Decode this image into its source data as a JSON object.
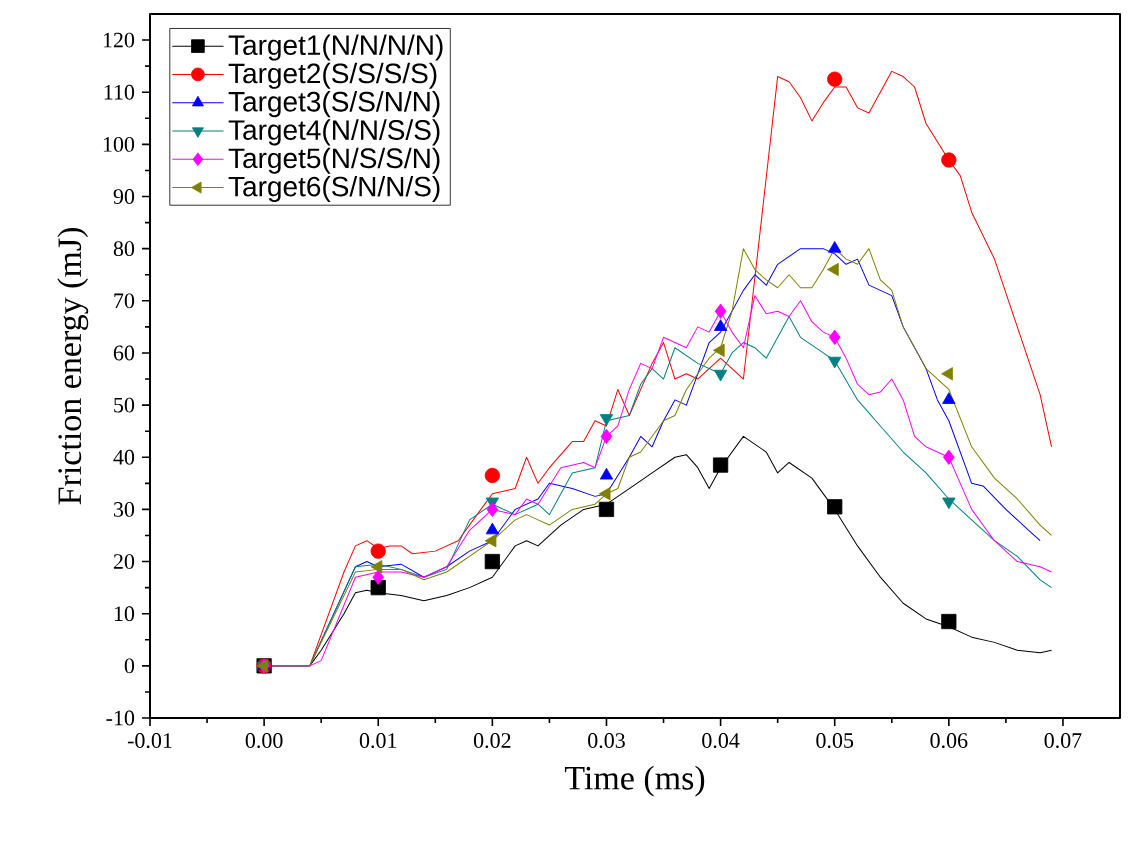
{
  "chart_data": {
    "type": "line",
    "xlabel": "Time (ms)",
    "ylabel": "Friction energy (mJ)",
    "xlim": [
      -0.01,
      0.075
    ],
    "ylim": [
      -10,
      125
    ],
    "xticks": [
      -0.01,
      {
        "value": 0,
        "label": "0.00"
      },
      0.01,
      0.02,
      0.03,
      0.04,
      0.05,
      0.06,
      0.07
    ],
    "yticks": [
      -10,
      0,
      10,
      20,
      30,
      40,
      50,
      60,
      70,
      80,
      90,
      100,
      110,
      120
    ],
    "legend": "top left",
    "grid": false,
    "series": [
      {
        "marker": "none",
        "color": "#000000",
        "x": [
          0,
          0.004,
          0.005,
          0.007,
          0.008,
          0.009,
          0.01,
          0.012,
          0.014,
          0.016,
          0.018,
          0.02,
          0.022,
          0.023,
          0.024,
          0.026,
          0.028,
          0.03,
          0.032,
          0.034,
          0.036,
          0.037,
          0.038,
          0.039,
          0.04,
          0.042,
          0.044,
          0.045,
          0.046,
          0.048,
          0.05,
          0.052,
          0.054,
          0.056,
          0.058,
          0.06,
          0.062,
          0.064,
          0.066,
          0.068,
          0.069
        ],
        "values": [
          0,
          0,
          3,
          10,
          14,
          14.5,
          14,
          13.5,
          12.5,
          13.5,
          15,
          17,
          23,
          24,
          23,
          27,
          30,
          31,
          34,
          37,
          40,
          40.5,
          38,
          34,
          38,
          44,
          41,
          37,
          39,
          36,
          30,
          23,
          17,
          12,
          9,
          7.5,
          5.5,
          4.5,
          3,
          2.5,
          3
        ]
      },
      {
        "marker": "none",
        "color": "#ff0000",
        "x": [
          0,
          0.004,
          0.007,
          0.008,
          0.009,
          0.01,
          0.011,
          0.012,
          0.013,
          0.015,
          0.017,
          0.019,
          0.02,
          0.022,
          0.023,
          0.024,
          0.025,
          0.027,
          0.028,
          0.029,
          0.03,
          0.031,
          0.032,
          0.034,
          0.035,
          0.036,
          0.037,
          0.038,
          0.04,
          0.041,
          0.042,
          0.045,
          0.046,
          0.047,
          0.048,
          0.049,
          0.05,
          0.051,
          0.052,
          0.053,
          0.055,
          0.056,
          0.057,
          0.058,
          0.06,
          0.061,
          0.062,
          0.064,
          0.066,
          0.068,
          0.069
        ],
        "values": [
          0,
          0,
          18,
          23,
          24,
          22.5,
          23,
          23,
          21.5,
          22,
          24,
          30,
          33,
          34,
          40,
          35,
          38,
          43,
          43,
          47,
          46,
          53,
          48,
          58,
          62,
          55,
          56,
          55,
          59,
          57,
          55,
          113,
          112,
          109,
          104.5,
          108,
          111,
          111,
          107,
          106,
          114,
          113,
          111,
          104,
          97,
          94,
          87,
          78,
          65,
          52,
          42
        ]
      },
      {
        "marker": "none",
        "color": "#0000ff",
        "x": [
          0,
          0.004,
          0.008,
          0.009,
          0.01,
          0.012,
          0.014,
          0.016,
          0.018,
          0.02,
          0.021,
          0.022,
          0.024,
          0.025,
          0.027,
          0.029,
          0.03,
          0.032,
          0.033,
          0.034,
          0.035,
          0.036,
          0.037,
          0.038,
          0.039,
          0.04,
          0.041,
          0.042,
          0.043,
          0.044,
          0.045,
          0.047,
          0.049,
          0.05,
          0.051,
          0.052,
          0.053,
          0.055,
          0.056,
          0.058,
          0.059,
          0.06,
          0.062,
          0.063,
          0.065,
          0.067,
          0.068
        ],
        "values": [
          0,
          0,
          19,
          20,
          19,
          19.5,
          17,
          19,
          22,
          24,
          27,
          30,
          32,
          35,
          34,
          32.5,
          33,
          40,
          44,
          42,
          47,
          51,
          50,
          56,
          62,
          64,
          68,
          72,
          75,
          73,
          77,
          80,
          80,
          79,
          77,
          78,
          73,
          71,
          65,
          57,
          51,
          47,
          35,
          34.5,
          30,
          26,
          24
        ]
      },
      {
        "marker": "none",
        "color": "#008080",
        "x": [
          0,
          0.004,
          0.008,
          0.01,
          0.012,
          0.014,
          0.016,
          0.018,
          0.02,
          0.022,
          0.024,
          0.025,
          0.027,
          0.029,
          0.03,
          0.032,
          0.033,
          0.034,
          0.035,
          0.036,
          0.038,
          0.04,
          0.041,
          0.042,
          0.043,
          0.044,
          0.045,
          0.046,
          0.047,
          0.049,
          0.05,
          0.052,
          0.054,
          0.056,
          0.058,
          0.06,
          0.062,
          0.064,
          0.066,
          0.068,
          0.069
        ],
        "values": [
          0,
          0,
          19,
          19.5,
          18.5,
          17,
          18.5,
          28,
          31,
          29,
          31,
          29,
          37,
          38,
          47,
          48,
          54,
          57,
          55,
          61,
          58,
          56,
          60,
          62,
          61,
          59,
          63,
          67,
          63,
          60,
          58.5,
          51,
          46,
          41,
          37,
          32,
          28,
          24,
          21,
          16.5,
          15
        ]
      },
      {
        "marker": "none",
        "color": "#ff00ff",
        "x": [
          0,
          0.004,
          0.005,
          0.008,
          0.01,
          0.012,
          0.014,
          0.016,
          0.018,
          0.02,
          0.022,
          0.023,
          0.024,
          0.026,
          0.028,
          0.029,
          0.03,
          0.031,
          0.032,
          0.033,
          0.034,
          0.035,
          0.036,
          0.037,
          0.038,
          0.039,
          0.04,
          0.041,
          0.042,
          0.043,
          0.044,
          0.045,
          0.046,
          0.047,
          0.048,
          0.049,
          0.05,
          0.051,
          0.052,
          0.053,
          0.054,
          0.055,
          0.056,
          0.057,
          0.058,
          0.06,
          0.061,
          0.062,
          0.064,
          0.066,
          0.068,
          0.069
        ],
        "values": [
          0,
          0,
          1,
          17,
          18,
          18,
          17,
          19,
          26,
          30,
          29,
          32,
          31,
          38,
          39,
          38,
          44,
          46,
          53,
          58,
          57,
          63,
          62,
          61,
          65,
          64,
          68,
          64,
          61,
          71,
          67.5,
          68,
          67,
          70,
          66,
          64,
          63,
          59,
          54,
          52,
          52.5,
          55,
          51,
          44,
          42,
          40,
          35,
          30,
          24,
          20,
          19,
          18
        ]
      },
      {
        "marker": "none",
        "color": "#808000",
        "x": [
          0,
          0.004,
          0.008,
          0.01,
          0.012,
          0.014,
          0.016,
          0.018,
          0.02,
          0.022,
          0.023,
          0.024,
          0.025,
          0.027,
          0.029,
          0.03,
          0.031,
          0.032,
          0.033,
          0.034,
          0.035,
          0.036,
          0.037,
          0.038,
          0.039,
          0.04,
          0.041,
          0.042,
          0.043,
          0.044,
          0.045,
          0.046,
          0.047,
          0.048,
          0.049,
          0.05,
          0.051,
          0.052,
          0.053,
          0.054,
          0.055,
          0.056,
          0.058,
          0.06,
          0.062,
          0.064,
          0.066,
          0.068,
          0.069
        ],
        "values": [
          0,
          0,
          18,
          18.5,
          18.5,
          16.5,
          18,
          21,
          24,
          28,
          29,
          28,
          27,
          30,
          31,
          33,
          34,
          40,
          41,
          44,
          47,
          48,
          53,
          56,
          59,
          61,
          68,
          80,
          76,
          74,
          72.5,
          75,
          72.5,
          72.5,
          76,
          80,
          78,
          77,
          80,
          74,
          72,
          65,
          57,
          53,
          42,
          36,
          32,
          27,
          25
        ]
      },
      {
        "type": "scatter",
        "name": "Target1(N/N/N/N)",
        "marker": "square",
        "color": "#000000",
        "x": [
          0,
          0.01,
          0.02,
          0.03,
          0.04,
          0.05,
          0.06
        ],
        "values": [
          0,
          15,
          20,
          30,
          38.5,
          30.5,
          8.5
        ]
      },
      {
        "type": "scatter",
        "name": "Target2(S/S/S/S)",
        "marker": "circle",
        "color": "#ff0000",
        "x": [
          0,
          0.01,
          0.02,
          0.03,
          0.04,
          0.05,
          0.06
        ],
        "values": [
          0,
          22,
          36.5,
          null,
          null,
          112.5,
          97
        ]
      },
      {
        "type": "scatter",
        "name": "Target3(S/S/N/N)",
        "marker": "triangle",
        "color": "#0000ff",
        "x": [
          0,
          0.01,
          0.02,
          0.03,
          0.04,
          0.05,
          0.06
        ],
        "values": [
          0,
          null,
          26,
          36.5,
          65,
          80,
          51
        ]
      },
      {
        "type": "scatter",
        "name": "Target4(N/N/S/S)",
        "marker": "triangle-down",
        "color": "#008080",
        "x": [
          0,
          0.01,
          0.02,
          0.03,
          0.04,
          0.05,
          0.06
        ],
        "values": [
          0,
          null,
          31.5,
          47.5,
          56,
          58.5,
          31.5
        ]
      },
      {
        "type": "scatter",
        "name": "Target5(N/S/S/N)",
        "marker": "diamond",
        "color": "#ff00ff",
        "x": [
          0,
          0.01,
          0.02,
          0.03,
          0.04,
          0.05,
          0.06
        ],
        "values": [
          0,
          17,
          30,
          44,
          68,
          63,
          40
        ]
      },
      {
        "type": "scatter",
        "name": "Target6(S/N/N/S)",
        "marker": "triangle-left",
        "color": "#808000",
        "x": [
          0,
          0.01,
          0.02,
          0.03,
          0.04,
          0.05,
          0.06
        ],
        "values": [
          0,
          19,
          24,
          33,
          60.5,
          76,
          56
        ]
      }
    ]
  }
}
